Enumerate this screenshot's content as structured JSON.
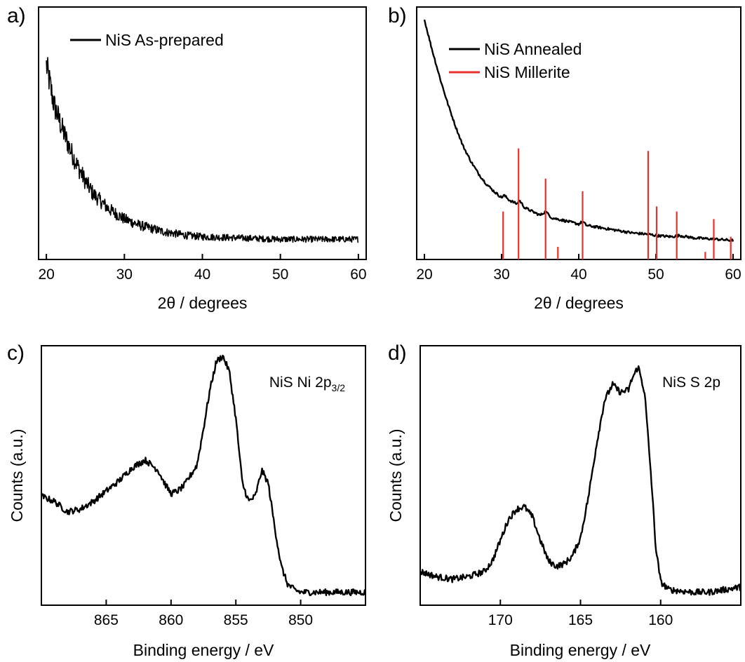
{
  "figure": {
    "panels": [
      {
        "letter": "a)"
      },
      {
        "letter": "b)"
      },
      {
        "letter": "c)"
      },
      {
        "letter": "d)"
      }
    ]
  },
  "chart_data": [
    {
      "panel": "a)",
      "type": "line",
      "xlabel": "2θ / degrees",
      "ylabel": "",
      "xlim": [
        19,
        61
      ],
      "ylim": [
        0,
        1
      ],
      "x_ticks": [
        20,
        30,
        40,
        50,
        60
      ],
      "y_ticks_labeled": false,
      "legend": "top-left",
      "series": [
        {
          "name": "NiS As-prepared",
          "color": "#000000",
          "style": "noisy",
          "noise_amp": [
            0.06,
            0.012
          ],
          "x": [
            20,
            20.3,
            21,
            22,
            23,
            24,
            25,
            26,
            28,
            30,
            32,
            35,
            38,
            40,
            45,
            50,
            55,
            60
          ],
          "y": [
            0.77,
            0.72,
            0.61,
            0.52,
            0.44,
            0.37,
            0.31,
            0.26,
            0.2,
            0.16,
            0.135,
            0.11,
            0.095,
            0.09,
            0.085,
            0.08,
            0.08,
            0.08
          ]
        }
      ]
    },
    {
      "panel": "b)",
      "type": "line",
      "xlabel": "2θ / degrees",
      "ylabel": "",
      "xlim": [
        19,
        61
      ],
      "ylim": [
        0,
        1
      ],
      "x_ticks": [
        20,
        30,
        40,
        50,
        60
      ],
      "y_ticks_labeled": false,
      "legend": "top-left",
      "series": [
        {
          "name": "NiS Annealed",
          "color": "#000000",
          "style": "light-noise",
          "noise_amp": [
            0.005,
            0.005
          ],
          "x": [
            20,
            21,
            22,
            23,
            24,
            25,
            26,
            27,
            28,
            29,
            30,
            30.3,
            31,
            32,
            32.3,
            33,
            34,
            35,
            35.7,
            36.5,
            38,
            40,
            40.5,
            41,
            44,
            47,
            49,
            50,
            52,
            53,
            55,
            58,
            60
          ],
          "y": [
            0.95,
            0.83,
            0.72,
            0.62,
            0.53,
            0.45,
            0.39,
            0.34,
            0.3,
            0.27,
            0.245,
            0.255,
            0.235,
            0.22,
            0.235,
            0.205,
            0.19,
            0.175,
            0.19,
            0.165,
            0.155,
            0.14,
            0.15,
            0.135,
            0.12,
            0.105,
            0.1,
            0.095,
            0.09,
            0.095,
            0.085,
            0.08,
            0.075
          ]
        },
        {
          "name": "NiS Millerite",
          "color": "#e8312c",
          "style": "sticks",
          "x": [
            30.2,
            32.2,
            35.7,
            37.3,
            40.5,
            49.0,
            50.1,
            52.7,
            56.4,
            57.5,
            59.7
          ],
          "y": [
            0.19,
            0.44,
            0.32,
            0.05,
            0.27,
            0.43,
            0.21,
            0.19,
            0.03,
            0.16,
            0.09
          ]
        }
      ]
    },
    {
      "panel": "c)",
      "type": "line",
      "annotation": "NiS Ni 2p",
      "annotation_sub": "3/2",
      "xlabel": "Binding energy / eV",
      "ylabel": "Counts (a.u.)",
      "xlim": [
        870,
        845
      ],
      "ylim": [
        0,
        1
      ],
      "x_ticks": [
        865,
        860,
        855,
        850
      ],
      "y_ticks_labeled": false,
      "series": [
        {
          "color": "#000000",
          "style": "light-noise",
          "noise_amp": [
            0.012,
            0.012
          ],
          "x": [
            870,
            869,
            868,
            867,
            866,
            865,
            864,
            863,
            862,
            861,
            860.5,
            860,
            859.5,
            859,
            858,
            857.5,
            857,
            856.5,
            856,
            855.5,
            855,
            854.5,
            854,
            853.5,
            853,
            852.5,
            852,
            851.5,
            851,
            850.5,
            850,
            849,
            848,
            847,
            846,
            845
          ],
          "y": [
            0.42,
            0.4,
            0.36,
            0.37,
            0.4,
            0.44,
            0.48,
            0.53,
            0.56,
            0.52,
            0.47,
            0.43,
            0.44,
            0.46,
            0.54,
            0.68,
            0.83,
            0.94,
            0.96,
            0.9,
            0.72,
            0.47,
            0.4,
            0.42,
            0.52,
            0.47,
            0.3,
            0.15,
            0.08,
            0.06,
            0.05,
            0.05,
            0.05,
            0.05,
            0.05,
            0.05
          ]
        }
      ]
    },
    {
      "panel": "d)",
      "type": "line",
      "annotation": "NiS S 2p",
      "xlabel": "Binding energy / eV",
      "ylabel": "Counts (a.u.)",
      "xlim": [
        175,
        155
      ],
      "ylim": [
        0,
        1
      ],
      "x_ticks": [
        170,
        165,
        160
      ],
      "y_ticks_labeled": false,
      "series": [
        {
          "color": "#000000",
          "style": "light-noise",
          "noise_amp": [
            0.012,
            0.012
          ],
          "x": [
            175,
            174,
            173,
            172,
            171,
            170.5,
            170,
            169.5,
            169,
            168.5,
            168,
            167.5,
            167,
            166.5,
            166,
            165.5,
            165,
            164.5,
            164,
            163.5,
            163,
            162.5,
            162,
            161.8,
            161.4,
            161,
            160.6,
            160.3,
            160,
            159.5,
            158,
            157,
            156,
            155
          ],
          "y": [
            0.13,
            0.11,
            0.1,
            0.11,
            0.13,
            0.17,
            0.25,
            0.33,
            0.37,
            0.38,
            0.34,
            0.25,
            0.17,
            0.15,
            0.16,
            0.19,
            0.26,
            0.42,
            0.62,
            0.79,
            0.85,
            0.82,
            0.83,
            0.87,
            0.92,
            0.82,
            0.5,
            0.22,
            0.09,
            0.06,
            0.05,
            0.05,
            0.06,
            0.07
          ]
        }
      ]
    }
  ]
}
